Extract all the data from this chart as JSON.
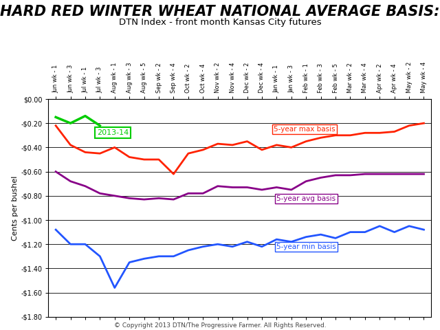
{
  "title": "HARD RED WINTER WHEAT NATIONAL AVERAGE BASIS:",
  "subtitle": "DTN Index - front month Kansas City futures",
  "ylabel": "Cents per bushel",
  "copyright": "© Copyright 2013 DTN/The Progressive Farmer. All Rights Reserved.",
  "xlabels": [
    "Jun wk - 1",
    "Jun wk - 3",
    "Jul wk - 1",
    "Jul wk - 3",
    "Aug wk - 1",
    "Aug wk - 3",
    "Aug wk - 5",
    "Sep wk - 2",
    "Sep wk - 4",
    "Oct wk - 2",
    "Oct wk - 4",
    "Nov wk - 2",
    "Nov wk - 4",
    "Dec wk - 2",
    "Dec wk - 4",
    "Jan wk - 1",
    "Jan wk - 3",
    "Feb wk - 1",
    "Feb wk - 3",
    "Feb wk - 5",
    "Mar wk - 2",
    "Mar wk - 4",
    "Apr wk - 2",
    "Apr wk - 4",
    "May wk - 2",
    "May wk - 4"
  ],
  "max_basis": [
    -0.22,
    -0.38,
    -0.44,
    -0.45,
    -0.4,
    -0.48,
    -0.5,
    -0.5,
    -0.62,
    -0.45,
    -0.42,
    -0.37,
    -0.38,
    -0.35,
    -0.42,
    -0.38,
    -0.4,
    -0.35,
    -0.32,
    -0.3,
    -0.3,
    -0.28,
    -0.28,
    -0.27,
    -0.22,
    -0.2
  ],
  "avg_basis": [
    -0.6,
    -0.68,
    -0.72,
    -0.78,
    -0.8,
    -0.82,
    -0.83,
    -0.82,
    -0.83,
    -0.78,
    -0.78,
    -0.72,
    -0.73,
    -0.73,
    -0.75,
    -0.73,
    -0.75,
    -0.68,
    -0.65,
    -0.63,
    -0.63,
    -0.62,
    -0.62,
    -0.62,
    -0.62,
    -0.62
  ],
  "min_basis": [
    -1.08,
    -1.2,
    -1.2,
    -1.3,
    -1.56,
    -1.35,
    -1.32,
    -1.3,
    -1.3,
    -1.25,
    -1.22,
    -1.2,
    -1.22,
    -1.18,
    -1.22,
    -1.16,
    -1.18,
    -1.14,
    -1.12,
    -1.15,
    -1.1,
    -1.1,
    -1.05,
    -1.1,
    -1.05,
    -1.08
  ],
  "current_basis": [
    -0.15,
    -0.2,
    -0.14,
    -0.22,
    null,
    null,
    null,
    null,
    null,
    null,
    null,
    null,
    null,
    null,
    null,
    null,
    null,
    null,
    null,
    null,
    null,
    null,
    null,
    null,
    null,
    null
  ],
  "max_color": "#ff2200",
  "avg_color": "#880088",
  "min_color": "#2255ff",
  "current_color": "#00cc00",
  "background_color": "#ffffff",
  "ylim_min": -1.8,
  "ylim_max": 0.0,
  "yticks": [
    0.0,
    -0.2,
    -0.4,
    -0.6,
    -0.8,
    -1.0,
    -1.2,
    -1.4,
    -1.6,
    -1.8
  ],
  "grid_color": "#000000",
  "title_fontsize": 15,
  "subtitle_fontsize": 9.5,
  "annotation_fontsize": 7.5,
  "ylabel_fontsize": 8,
  "tick_fontsize": 6,
  "copyright_fontsize": 6.5
}
